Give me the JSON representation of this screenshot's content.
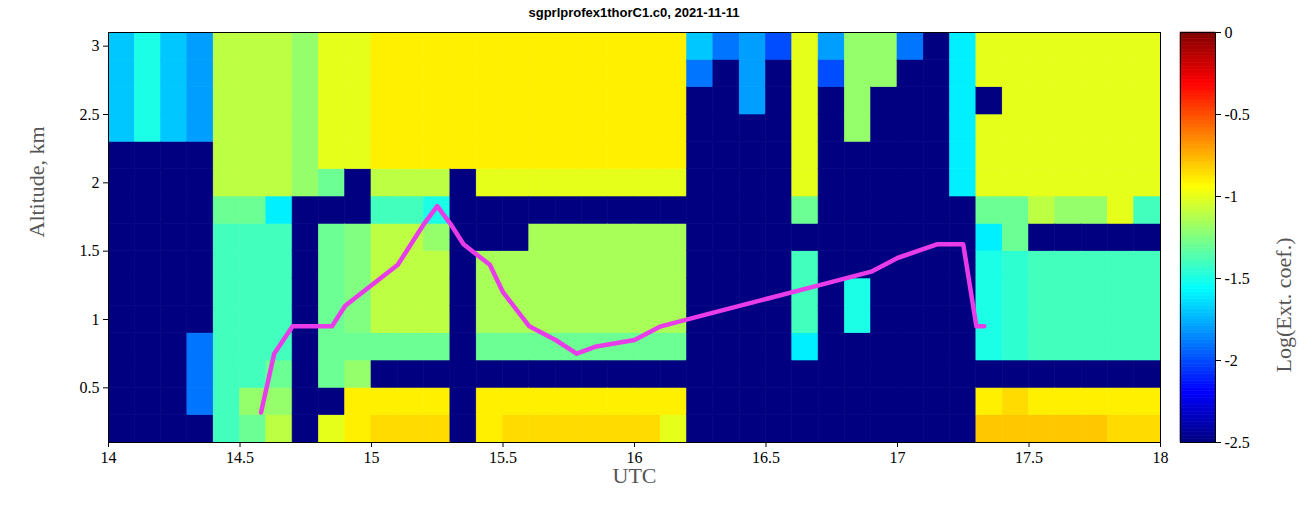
{
  "chart_data": {
    "type": "heatmap",
    "title": "sgprlprofex1thorC1.c0, 2021-11-11",
    "x_label": "UTC",
    "y_label": "Altitude, km",
    "xlim": [
      14,
      18
    ],
    "xticks": [
      14,
      14.5,
      15,
      15.5,
      16,
      16.5,
      17,
      17.5,
      18
    ],
    "ylim": [
      0.1,
      3.1
    ],
    "yticks": [
      0.5,
      1,
      1.5,
      2,
      2.5,
      3
    ],
    "x_edges": [
      14.0,
      14.1,
      14.2,
      14.3,
      14.4,
      14.5,
      14.6,
      14.7,
      14.8,
      14.9,
      15.0,
      15.1,
      15.2,
      15.3,
      15.4,
      15.5,
      15.6,
      15.7,
      15.8,
      15.9,
      16.0,
      16.1,
      16.2,
      16.3,
      16.4,
      16.5,
      16.6,
      16.7,
      16.8,
      16.9,
      17.0,
      17.1,
      17.2,
      17.3,
      17.4,
      17.5,
      17.6,
      17.7,
      17.8,
      17.9,
      18.0
    ],
    "y_edges": [
      0.1,
      0.3,
      0.5,
      0.7,
      0.9,
      1.1,
      1.3,
      1.5,
      1.7,
      1.9,
      2.1,
      2.3,
      2.5,
      2.7,
      2.9,
      3.1
    ],
    "z": [
      [
        -2.5,
        -2.5,
        -2.5,
        -2.5,
        -2.5,
        -2.5,
        -2.5,
        -2.5,
        -2.5,
        -2.5,
        -2.5,
        -1.7,
        -1.7,
        -1.7,
        -1.7
      ],
      [
        -2.5,
        -2.5,
        -2.5,
        -2.5,
        -2.5,
        -2.5,
        -2.5,
        -2.5,
        -2.5,
        -2.5,
        -2.5,
        -1.5,
        -1.5,
        -1.5,
        -1.5
      ],
      [
        -2.5,
        -2.5,
        -2.5,
        -2.5,
        -2.5,
        -2.5,
        -2.5,
        -2.5,
        -2.5,
        -2.5,
        -2.5,
        -1.7,
        -1.7,
        -1.7,
        -1.7
      ],
      [
        -2.5,
        -1.9,
        -1.9,
        -1.9,
        -2.5,
        -2.5,
        -2.5,
        -2.5,
        -2.5,
        -2.5,
        -2.5,
        -1.8,
        -1.8,
        -1.8,
        -1.8
      ],
      [
        -1.4,
        -1.4,
        -1.4,
        -1.4,
        -1.4,
        -1.4,
        -1.4,
        -1.4,
        -1.3,
        -1.1,
        -1.1,
        -1.1,
        -1.1,
        -1.1,
        -1.1
      ],
      [
        -1.3,
        -1.2,
        -1.4,
        -1.4,
        -1.4,
        -1.4,
        -1.4,
        -1.4,
        -1.3,
        -1.1,
        -1.1,
        -1.1,
        -1.1,
        -1.1,
        -1.1
      ],
      [
        -1.1,
        -1.2,
        -1.3,
        -1.4,
        -1.4,
        -1.4,
        -1.4,
        -1.4,
        -1.6,
        -1.1,
        -1.1,
        -1.1,
        -1.1,
        -1.1,
        -1.1
      ],
      [
        -2.5,
        -2.5,
        -2.5,
        -2.5,
        -2.5,
        -2.5,
        -2.5,
        -2.5,
        -2.5,
        -1.2,
        -1.2,
        -1.2,
        -1.2,
        -1.2,
        -1.2
      ],
      [
        -1.0,
        -2.5,
        -1.3,
        -1.3,
        -1.3,
        -1.3,
        -1.3,
        -1.3,
        -2.5,
        -1.3,
        -1.0,
        -1.0,
        -1.0,
        -1.0,
        -1.0
      ],
      [
        -0.9,
        -0.9,
        -1.2,
        -1.3,
        -1.25,
        -1.25,
        -1.25,
        -1.25,
        -2.5,
        -2.5,
        -1.0,
        -1.0,
        -1.0,
        -1.0,
        -1.0
      ],
      [
        -0.85,
        -0.9,
        -2.5,
        -1.3,
        -1.1,
        -1.1,
        -1.1,
        -1.1,
        -1.4,
        -1.1,
        -0.9,
        -0.9,
        -0.9,
        -0.9,
        -0.9
      ],
      [
        -0.85,
        -0.9,
        -2.5,
        -1.3,
        -1.1,
        -1.1,
        -1.1,
        -1.1,
        -1.4,
        -1.1,
        -0.9,
        -0.9,
        -0.9,
        -0.9,
        -0.9
      ],
      [
        -0.85,
        -0.9,
        -2.5,
        -1.3,
        -1.1,
        -1.1,
        -1.1,
        -1.2,
        -1.5,
        -1.1,
        -0.9,
        -0.9,
        -0.9,
        -0.9,
        -0.9
      ],
      [
        -2.5,
        -2.5,
        -2.5,
        -2.5,
        -2.5,
        -2.5,
        -2.5,
        -2.5,
        -2.5,
        -2.5,
        -0.9,
        -0.9,
        -0.9,
        -0.9,
        -0.9
      ],
      [
        -0.9,
        -0.9,
        -2.5,
        -1.3,
        -1.15,
        -1.15,
        -1.15,
        -2.5,
        -2.5,
        -1.0,
        -0.9,
        -0.9,
        -0.9,
        -0.9,
        -0.9
      ],
      [
        -0.85,
        -0.9,
        -2.5,
        -1.3,
        -1.15,
        -1.15,
        -1.15,
        -2.5,
        -2.5,
        -1.0,
        -0.9,
        -0.9,
        -0.9,
        -0.9,
        -0.9
      ],
      [
        -0.85,
        -0.9,
        -2.5,
        -1.3,
        -1.15,
        -1.15,
        -1.15,
        -1.15,
        -2.5,
        -1.0,
        -0.9,
        -0.9,
        -0.9,
        -0.9,
        -0.9
      ],
      [
        -0.85,
        -0.9,
        -2.5,
        -1.3,
        -1.15,
        -1.15,
        -1.15,
        -1.15,
        -2.5,
        -1.0,
        -0.9,
        -0.9,
        -0.9,
        -0.9,
        -0.9
      ],
      [
        -0.85,
        -0.9,
        -2.5,
        -1.3,
        -1.15,
        -1.15,
        -1.15,
        -1.15,
        -2.5,
        -1.0,
        -0.9,
        -0.9,
        -0.9,
        -0.9,
        -0.9
      ],
      [
        -0.85,
        -0.9,
        -2.5,
        -1.3,
        -1.15,
        -1.15,
        -1.15,
        -1.15,
        -2.5,
        -1.0,
        -0.9,
        -0.9,
        -0.9,
        -0.9,
        -0.9
      ],
      [
        -0.85,
        -0.9,
        -2.5,
        -1.3,
        -1.15,
        -1.15,
        -1.15,
        -1.15,
        -2.5,
        -1.0,
        -0.9,
        -0.9,
        -0.9,
        -0.9,
        -0.9
      ],
      [
        -1.0,
        -0.9,
        -2.5,
        -1.3,
        -1.15,
        -1.15,
        -1.15,
        -1.15,
        -2.5,
        -1.0,
        -0.9,
        -0.9,
        -0.9,
        -0.9,
        -0.9
      ],
      [
        -2.5,
        -2.5,
        -2.5,
        -2.5,
        -2.5,
        -2.5,
        -2.5,
        -2.5,
        -2.5,
        -2.5,
        -2.5,
        -2.5,
        -2.5,
        -1.9,
        -1.7
      ],
      [
        -2.5,
        -2.5,
        -2.5,
        -2.5,
        -2.5,
        -2.5,
        -2.5,
        -2.5,
        -2.5,
        -2.5,
        -2.5,
        -2.5,
        -2.5,
        -2.5,
        -1.9
      ],
      [
        -2.5,
        -2.5,
        -2.5,
        -2.5,
        -2.5,
        -2.5,
        -2.5,
        -2.5,
        -2.5,
        -2.5,
        -2.5,
        -2.5,
        -1.8,
        -1.8,
        -1.8
      ],
      [
        -2.5,
        -2.5,
        -2.5,
        -2.5,
        -2.5,
        -2.5,
        -2.5,
        -2.5,
        -2.5,
        -2.5,
        -2.5,
        -2.5,
        -2.5,
        -2.5,
        -2.0
      ],
      [
        -2.5,
        -2.5,
        -2.5,
        -1.6,
        -1.4,
        -1.4,
        -1.4,
        -2.5,
        -1.3,
        -1.0,
        -1.0,
        -1.0,
        -1.0,
        -1.0,
        -1.0
      ],
      [
        -2.5,
        -2.5,
        -2.5,
        -2.5,
        -2.5,
        -2.5,
        -2.5,
        -2.5,
        -2.5,
        -2.5,
        -2.5,
        -2.5,
        -2.5,
        -2.0,
        -1.8
      ],
      [
        -2.5,
        -2.5,
        -2.5,
        -2.5,
        -1.5,
        -1.5,
        -2.5,
        -2.5,
        -2.5,
        -2.5,
        -2.5,
        -1.2,
        -1.2,
        -1.2,
        -1.2
      ],
      [
        -2.5,
        -2.5,
        -2.5,
        -2.5,
        -2.5,
        -2.5,
        -2.5,
        -2.5,
        -2.5,
        -2.5,
        -2.5,
        -2.5,
        -2.5,
        -1.2,
        -1.2
      ],
      [
        -2.5,
        -2.5,
        -2.5,
        -2.5,
        -2.5,
        -2.5,
        -2.5,
        -2.5,
        -2.5,
        -2.5,
        -2.5,
        -2.5,
        -2.5,
        -2.5,
        -1.9
      ],
      [
        -2.5,
        -2.5,
        -2.5,
        -2.5,
        -2.5,
        -2.5,
        -2.5,
        -2.5,
        -2.5,
        -2.5,
        -2.5,
        -2.5,
        -2.5,
        -2.5,
        -2.5
      ],
      [
        -2.5,
        -2.5,
        -2.5,
        -2.5,
        -2.5,
        -2.5,
        -2.5,
        -2.5,
        -2.5,
        -1.6,
        -1.6,
        -1.6,
        -1.6,
        -1.6,
        -1.6
      ],
      [
        -0.8,
        -0.9,
        -2.5,
        -1.5,
        -1.5,
        -1.5,
        -1.5,
        -1.6,
        -1.3,
        -1.0,
        -1.0,
        -1.0,
        -2.5,
        -1.0,
        -1.0
      ],
      [
        -0.8,
        -0.85,
        -2.5,
        -1.45,
        -1.45,
        -1.45,
        -1.45,
        -1.3,
        -1.3,
        -1.0,
        -1.0,
        -1.0,
        -1.0,
        -1.0,
        -1.0
      ],
      [
        -0.8,
        -0.9,
        -2.5,
        -1.4,
        -1.4,
        -1.4,
        -1.4,
        -2.5,
        -1.1,
        -1.0,
        -1.0,
        -1.0,
        -1.0,
        -1.0,
        -1.0
      ],
      [
        -0.8,
        -0.9,
        -2.5,
        -1.4,
        -1.4,
        -1.4,
        -1.4,
        -2.5,
        -1.2,
        -1.0,
        -1.0,
        -1.0,
        -1.0,
        -1.0,
        -1.0
      ],
      [
        -0.8,
        -0.9,
        -2.5,
        -1.4,
        -1.4,
        -1.4,
        -1.4,
        -2.5,
        -1.2,
        -1.0,
        -1.0,
        -1.0,
        -1.0,
        -1.0,
        -1.0
      ],
      [
        -0.85,
        -0.9,
        -2.5,
        -1.4,
        -1.4,
        -1.4,
        -1.4,
        -2.5,
        -1.0,
        -1.0,
        -1.0,
        -1.0,
        -1.0,
        -1.0,
        -1.0
      ],
      [
        -0.85,
        -0.9,
        -2.5,
        -1.4,
        -1.4,
        -1.4,
        -1.4,
        -2.5,
        -1.4,
        -1.0,
        -1.0,
        -1.0,
        -1.0,
        -1.0,
        -1.0
      ]
    ],
    "colorbar": {
      "label": "Log(Ext. coef.)",
      "lim": [
        -2.5,
        0
      ],
      "ticks": [
        -2.5,
        -2,
        -1.5,
        -1,
        -0.5,
        0
      ]
    },
    "series": [
      {
        "type": "line",
        "color": "#e83ce8",
        "x": [
          14.58,
          14.63,
          14.7,
          14.85,
          14.9,
          15.0,
          15.1,
          15.15,
          15.2,
          15.25,
          15.3,
          15.35,
          15.45,
          15.5,
          15.6,
          15.7,
          15.78,
          15.85,
          16.0,
          16.1,
          16.3,
          16.5,
          16.7,
          16.9,
          17.0,
          17.15,
          17.25,
          17.3,
          17.33
        ],
        "values": [
          0.32,
          0.75,
          0.95,
          0.95,
          1.1,
          1.25,
          1.4,
          1.55,
          1.7,
          1.83,
          1.7,
          1.55,
          1.4,
          1.2,
          0.95,
          0.85,
          0.75,
          0.8,
          0.85,
          0.95,
          1.05,
          1.15,
          1.25,
          1.35,
          1.45,
          1.55,
          1.55,
          0.95,
          0.95
        ]
      }
    ]
  }
}
